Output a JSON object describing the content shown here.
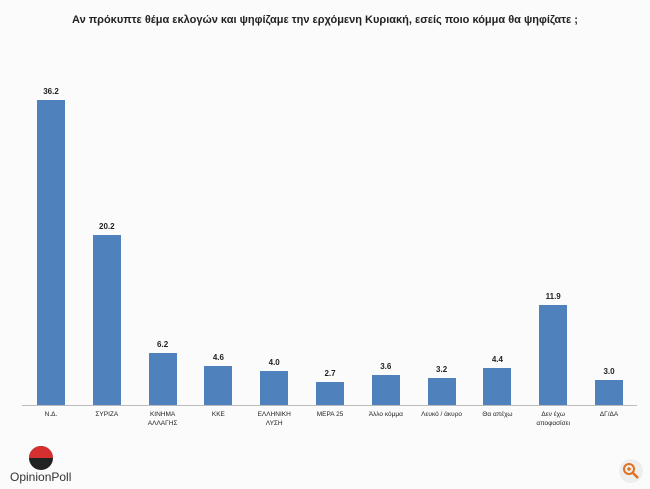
{
  "chart_data": {
    "type": "bar",
    "title": "Αν πρόκυπτε θέμα εκλογών και ψηφίζαμε την ερχόμενη Κυριακή, εσείς ποιο κόμμα θα ψηφίζατε ;",
    "categories": [
      "Ν.Δ.",
      "ΣΥΡΙΖΑ",
      "ΚΙΝΗΜΑ ΑΛΛΑΓΗΣ",
      "ΚΚΕ",
      "ΕΛΛΗΝΙΚΗ ΛΥΣΗ",
      "ΜΕΡΑ 25",
      "Άλλο κόμμα",
      "Λευκό / άκυρο",
      "Θα απέχω",
      "Δεν έχω αποφασίσει",
      "ΔΓ/ΔΑ"
    ],
    "values": [
      36.2,
      20.2,
      6.2,
      4.6,
      4.0,
      2.7,
      3.6,
      3.2,
      4.4,
      11.9,
      3.0
    ],
    "value_labels": [
      "36.2",
      "20.2",
      "6.2",
      "4.6",
      "4.0",
      "2.7",
      "3.6",
      "3.2",
      "4.4",
      "11.9",
      "3.0"
    ],
    "color": "#4f81bd"
  },
  "logo": "OpinionPoll"
}
